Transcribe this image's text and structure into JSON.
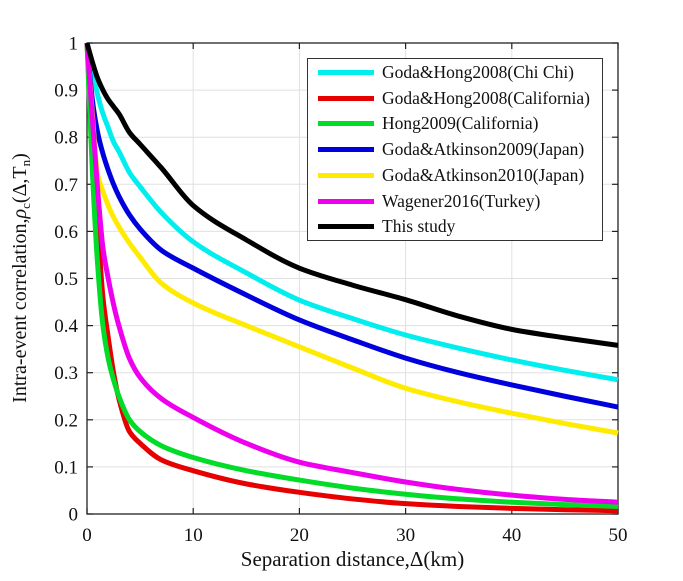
{
  "figure": {
    "xlabel": "Separation distance,Δ(km)",
    "ylabel_parts": {
      "p1": "Intra-event correlation,",
      "rho": "ρ",
      "sub1": "c",
      "p2": "(Δ,T",
      "sub2": "n",
      "p3": ")"
    }
  },
  "legend": {
    "position": "top-right",
    "entries": [
      {
        "label": "Goda&Hong2008(Chi Chi)",
        "color": "#00EEEE"
      },
      {
        "label": "Goda&Hong2008(California)",
        "color": "#E60000"
      },
      {
        "label": "Hong2009(California)",
        "color": "#00DC28"
      },
      {
        "label": "Goda&Atkinson2009(Japan)",
        "color": "#0000DD"
      },
      {
        "label": "Goda&Atkinson2010(Japan)",
        "color": "#FFEB00"
      },
      {
        "label": "Wagener2016(Turkey)",
        "color": "#EE00EE"
      },
      {
        "label": "This study",
        "color": "#000000"
      }
    ]
  },
  "chart_data": {
    "type": "line",
    "title": "",
    "xlabel": "Separation distance,Δ(km)",
    "ylabel": "Intra-event correlation,ρc(Δ,Tn)",
    "xlim": [
      0,
      50
    ],
    "ylim": [
      0,
      1
    ],
    "x_ticks": [
      0,
      10,
      20,
      30,
      40,
      50
    ],
    "y_ticks": [
      0,
      0.1,
      0.2,
      0.3,
      0.4,
      0.5,
      0.6,
      0.7,
      0.8,
      0.9,
      1
    ],
    "grid": true,
    "legend_position": "top-right",
    "x": [
      0,
      0.5,
      1,
      1.5,
      2,
      2.5,
      3,
      4,
      5,
      7,
      10,
      15,
      20,
      25,
      30,
      35,
      40,
      45,
      50
    ],
    "series": [
      {
        "name": "Goda&Hong2008(Chi Chi)",
        "color": "#00EEEE",
        "values": [
          1,
          0.945,
          0.89,
          0.85,
          0.82,
          0.79,
          0.77,
          0.725,
          0.695,
          0.64,
          0.578,
          0.512,
          0.454,
          0.415,
          0.38,
          0.352,
          0.327,
          0.305,
          0.285
        ]
      },
      {
        "name": "Goda&Hong2008(California)",
        "color": "#E60000",
        "values": [
          1,
          0.8,
          0.62,
          0.46,
          0.375,
          0.3,
          0.245,
          0.175,
          0.15,
          0.115,
          0.092,
          0.064,
          0.046,
          0.032,
          0.022,
          0.016,
          0.012,
          0.009,
          0.007
        ]
      },
      {
        "name": "Hong2009(California)",
        "color": "#00DC28",
        "values": [
          1,
          0.73,
          0.53,
          0.4,
          0.33,
          0.285,
          0.25,
          0.2,
          0.175,
          0.145,
          0.12,
          0.092,
          0.072,
          0.055,
          0.042,
          0.032,
          0.025,
          0.02,
          0.016
        ]
      },
      {
        "name": "Goda&Atkinson2009(Japan)",
        "color": "#0000DD",
        "values": [
          1,
          0.88,
          0.81,
          0.765,
          0.73,
          0.7,
          0.675,
          0.635,
          0.605,
          0.56,
          0.522,
          0.465,
          0.412,
          0.37,
          0.331,
          0.3,
          0.274,
          0.25,
          0.227
        ]
      },
      {
        "name": "Goda&Atkinson2010(Japan)",
        "color": "#FFEB00",
        "values": [
          1,
          0.85,
          0.72,
          0.685,
          0.655,
          0.63,
          0.61,
          0.575,
          0.545,
          0.49,
          0.448,
          0.4,
          0.355,
          0.31,
          0.267,
          0.238,
          0.214,
          0.192,
          0.172
        ]
      },
      {
        "name": "Wagener2016(Turkey)",
        "color": "#EE00EE",
        "values": [
          1,
          0.84,
          0.69,
          0.565,
          0.5,
          0.445,
          0.4,
          0.33,
          0.29,
          0.245,
          0.205,
          0.15,
          0.11,
          0.088,
          0.068,
          0.052,
          0.04,
          0.031,
          0.025
        ]
      },
      {
        "name": "This study",
        "color": "#000000",
        "values": [
          1,
          0.96,
          0.925,
          0.9,
          0.88,
          0.865,
          0.85,
          0.81,
          0.785,
          0.735,
          0.655,
          0.582,
          0.522,
          0.486,
          0.455,
          0.42,
          0.392,
          0.374,
          0.358
        ]
      }
    ]
  }
}
